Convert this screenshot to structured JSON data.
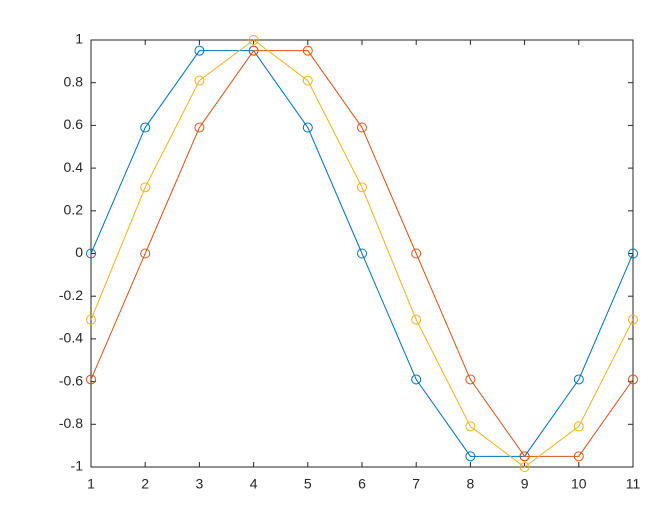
{
  "chart_data": {
    "type": "line",
    "x": [
      1,
      2,
      3,
      4,
      5,
      6,
      7,
      8,
      9,
      10,
      11
    ],
    "series": [
      {
        "color": "#0072bd",
        "values": [
          0,
          0.59,
          0.95,
          0.95,
          0.59,
          0,
          -0.59,
          -0.95,
          -0.95,
          -0.59,
          0
        ]
      },
      {
        "color": "#d95319",
        "values": [
          -0.59,
          0,
          0.59,
          0.95,
          0.95,
          0.59,
          0,
          -0.59,
          -0.95,
          -0.95,
          -0.59
        ]
      },
      {
        "color": "#edb120",
        "values": [
          -0.31,
          0.31,
          0.81,
          1,
          0.81,
          0.31,
          -0.31,
          -0.81,
          -1,
          -0.81,
          -0.31
        ]
      }
    ],
    "marker": "circle",
    "xlim": [
      1,
      11
    ],
    "xticks": [
      1,
      2,
      3,
      4,
      5,
      6,
      7,
      8,
      9,
      10,
      11
    ],
    "ylim": [
      -1,
      1
    ],
    "yticks": [
      -1,
      -0.8,
      -0.6,
      -0.4,
      -0.2,
      0,
      0.2,
      0.4,
      0.6,
      0.8,
      1
    ],
    "grid": false,
    "box": true
  }
}
